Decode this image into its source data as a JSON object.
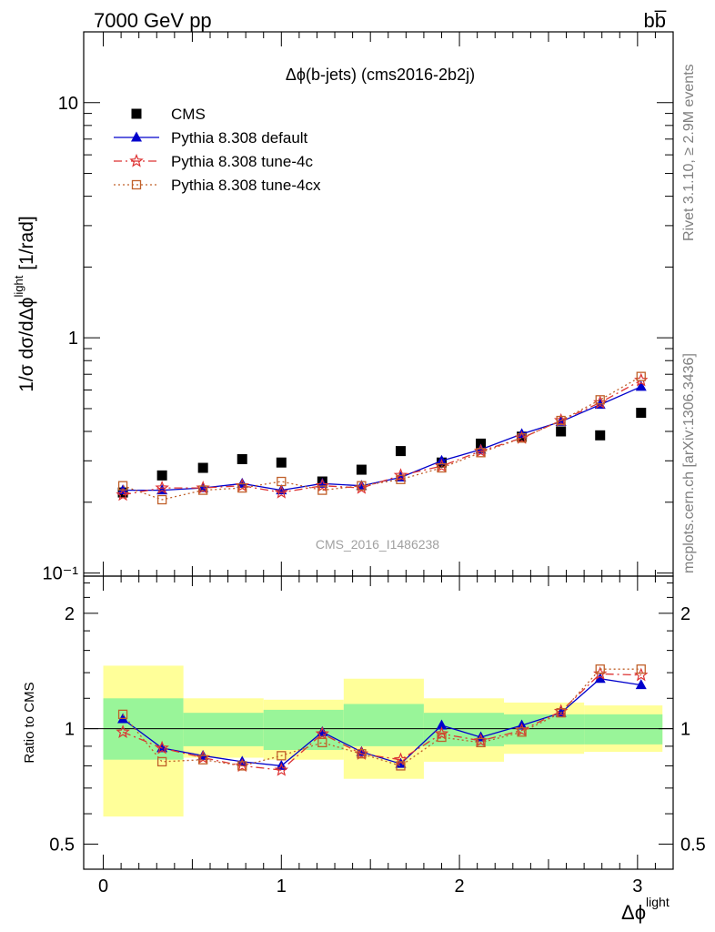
{
  "header": {
    "left_label": "7000 GeV pp",
    "right_label": "bb̅"
  },
  "side_labels": {
    "rivet": "Rivet 3.1.10, ≥ 2.9M events",
    "mcplots": "mcplots.cern.ch [arXiv:1306.3436]"
  },
  "chart_data": [
    {
      "type": "scatter",
      "title": "Δϕ(b-jets) (cms2016-2b2j)",
      "watermark": "CMS_2016_I1486238",
      "ylabel": "1/σ dσ/dΔϕ",
      "ylabel_sup": "light",
      "ylabel_unit": " [1/rad]",
      "yscale": "log",
      "ylim": [
        0.097,
        20
      ],
      "xlim": [
        -0.11,
        3.2
      ],
      "ytick_labels": [
        "10⁻¹",
        "1",
        "10"
      ],
      "legend_position": "top-left",
      "x": [
        0.11,
        0.33,
        0.56,
        0.78,
        1.0,
        1.23,
        1.45,
        1.67,
        1.9,
        2.12,
        2.35,
        2.57,
        2.79,
        3.02
      ],
      "series": [
        {
          "name": "CMS",
          "color": "#000000",
          "marker": "square-filled",
          "line": "none",
          "values": [
            0.22,
            0.26,
            0.28,
            0.305,
            0.295,
            0.245,
            0.275,
            0.33,
            0.295,
            0.355,
            0.38,
            0.4,
            0.385,
            0.48
          ]
        },
        {
          "name": "Pythia 8.308 default",
          "color": "#0000cc",
          "marker": "triangle-filled",
          "line": "solid",
          "values": [
            0.225,
            0.225,
            0.23,
            0.24,
            0.225,
            0.24,
            0.235,
            0.255,
            0.3,
            0.335,
            0.39,
            0.44,
            0.52,
            0.62
          ]
        },
        {
          "name": "Pythia 8.308 tune-4c",
          "color": "#dd3333",
          "marker": "star",
          "line": "dashdot",
          "values": [
            0.215,
            0.23,
            0.23,
            0.235,
            0.22,
            0.235,
            0.23,
            0.26,
            0.285,
            0.33,
            0.375,
            0.445,
            0.53,
            0.66
          ]
        },
        {
          "name": "Pythia 8.308 tune-4cx",
          "color": "#c0602a",
          "marker": "square-open",
          "line": "dotted",
          "values": [
            0.235,
            0.205,
            0.225,
            0.23,
            0.245,
            0.225,
            0.235,
            0.25,
            0.28,
            0.325,
            0.375,
            0.445,
            0.545,
            0.685
          ]
        }
      ]
    },
    {
      "type": "line",
      "ylabel": "Ratio to CMS",
      "xlabel": "Δϕ",
      "xlabel_sup": "light",
      "ylim": [
        0.43,
        2.5
      ],
      "yscale": "log",
      "xlim": [
        -0.11,
        3.2
      ],
      "xticks": [
        0,
        1,
        2,
        3
      ],
      "yticks": [
        0.5,
        1,
        2
      ],
      "x": [
        0.11,
        0.33,
        0.56,
        0.78,
        1.0,
        1.23,
        1.45,
        1.67,
        1.9,
        2.12,
        2.35,
        2.57,
        2.79,
        3.02
      ],
      "bins": [
        {
          "lo": 0.0,
          "hi": 0.45,
          "band_stat": [
            0.83,
            1.2
          ],
          "band_total": [
            0.59,
            1.46
          ]
        },
        {
          "lo": 0.45,
          "hi": 0.9,
          "band_stat": [
            0.9,
            1.1
          ],
          "band_total": [
            0.84,
            1.2
          ]
        },
        {
          "lo": 0.9,
          "hi": 1.35,
          "band_stat": [
            0.88,
            1.12
          ],
          "band_total": [
            0.83,
            1.19
          ]
        },
        {
          "lo": 1.35,
          "hi": 1.8,
          "band_stat": [
            0.9,
            1.16
          ],
          "band_total": [
            0.74,
            1.35
          ]
        },
        {
          "lo": 1.8,
          "hi": 2.25,
          "band_stat": [
            0.9,
            1.1
          ],
          "band_total": [
            0.82,
            1.2
          ]
        },
        {
          "lo": 2.25,
          "hi": 2.7,
          "band_stat": [
            0.91,
            1.09
          ],
          "band_total": [
            0.86,
            1.17
          ]
        },
        {
          "lo": 2.7,
          "hi": 3.14,
          "band_stat": [
            0.91,
            1.09
          ],
          "band_total": [
            0.87,
            1.15
          ]
        }
      ],
      "series": [
        {
          "name": "Pythia 8.308 default",
          "color": "#0000cc",
          "marker": "triangle-filled",
          "line": "solid",
          "values": [
            1.06,
            0.89,
            0.85,
            0.82,
            0.8,
            0.98,
            0.87,
            0.81,
            1.02,
            0.95,
            1.02,
            1.1,
            1.35,
            1.3
          ]
        },
        {
          "name": "Pythia 8.308 tune-4c",
          "color": "#dd3333",
          "marker": "star",
          "line": "dashdot",
          "values": [
            0.98,
            0.89,
            0.84,
            0.8,
            0.78,
            0.97,
            0.86,
            0.83,
            0.97,
            0.93,
            0.99,
            1.11,
            1.39,
            1.38
          ]
        },
        {
          "name": "Pythia 8.308 tune-4cx",
          "color": "#c0602a",
          "marker": "square-open",
          "line": "dotted",
          "values": [
            1.09,
            0.82,
            0.83,
            0.8,
            0.85,
            0.92,
            0.86,
            0.8,
            0.95,
            0.92,
            0.98,
            1.1,
            1.43,
            1.43
          ]
        }
      ]
    }
  ]
}
